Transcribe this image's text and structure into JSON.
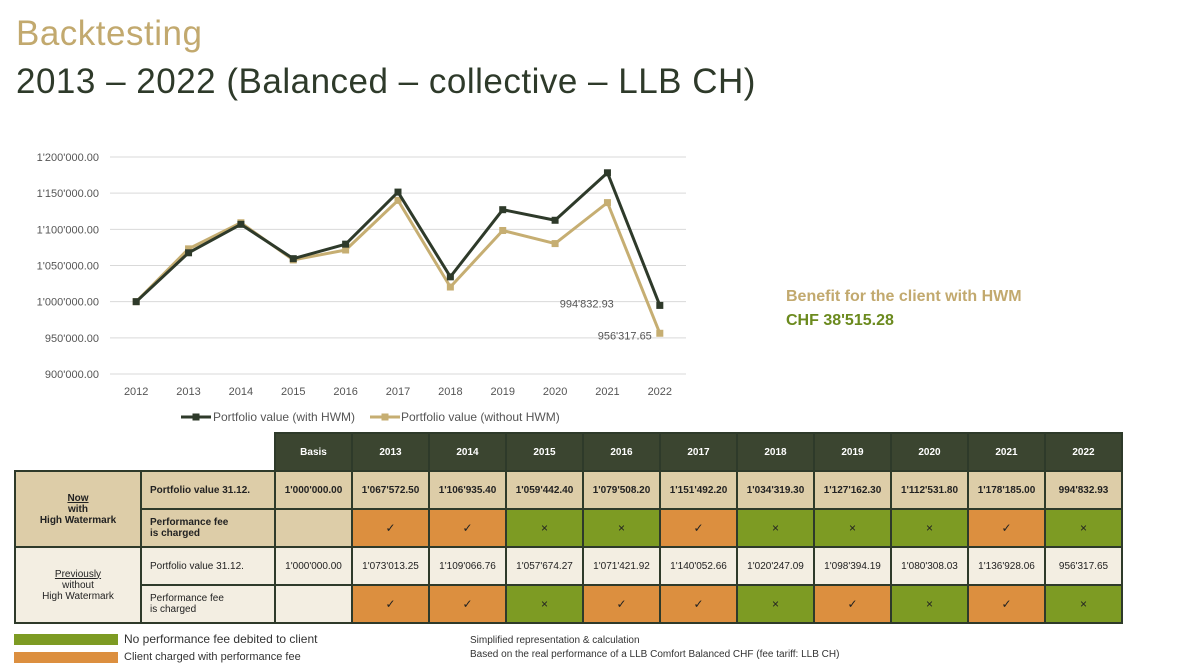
{
  "title": "Backtesting",
  "subtitle": "2013 – 2022 (Balanced – collective – LLB CH)",
  "chart_data": {
    "type": "line",
    "categories": [
      "2012",
      "2013",
      "2014",
      "2015",
      "2016",
      "2017",
      "2018",
      "2019",
      "2020",
      "2021",
      "2022"
    ],
    "ylim": [
      900000,
      1200000
    ],
    "y_ticks": [
      900000,
      950000,
      1000000,
      1050000,
      1100000,
      1150000,
      1200000
    ],
    "y_tick_labels": [
      "900'000.00",
      "950'000.00",
      "1'000'000.00",
      "1'050'000.00",
      "1'100'000.00",
      "1'150'000.00",
      "1'200'000.00"
    ],
    "series": [
      {
        "name": "Portfolio value (with HWM)",
        "color": "#2e3a2a",
        "values": [
          1000000,
          1067572.5,
          1106935.4,
          1059442.4,
          1079508.2,
          1151492.2,
          1034319.3,
          1127162.3,
          1112531.8,
          1178185.0,
          994832.93
        ]
      },
      {
        "name": "Portfolio value (without HWM)",
        "color": "#c6ae72",
        "values": [
          1000000,
          1073013.25,
          1109066.76,
          1057674.27,
          1071421.92,
          1140052.66,
          1020247.09,
          1098394.19,
          1080308.03,
          1136928.06,
          956317.65
        ]
      }
    ],
    "annotations": [
      "994'832.93",
      "956'317.65"
    ],
    "grid": true,
    "legend": "bottom"
  },
  "benefit": {
    "label": "Benefit for the client with HWM",
    "value": "CHF 38'515.28"
  },
  "table": {
    "headers": [
      "Basis",
      "2013",
      "2014",
      "2015",
      "2016",
      "2017",
      "2018",
      "2019",
      "2020",
      "2021",
      "2022"
    ],
    "group1": {
      "line1": "Now",
      "line2": "with",
      "line3": "High Watermark"
    },
    "group2": {
      "line1": "Previously",
      "line2": "without",
      "line3": "High Watermark"
    },
    "row_value_label": "Portfolio value 31.12.",
    "row_fee_label_1": "Performance fee",
    "row_fee_label_2": "is charged",
    "with_hwm_values": [
      "1'000'000.00",
      "1'067'572.50",
      "1'106'935.40",
      "1'059'442.40",
      "1'079'508.20",
      "1'151'492.20",
      "1'034'319.30",
      "1'127'162.30",
      "1'112'531.80",
      "1'178'185.00",
      "994'832.93"
    ],
    "without_hwm_values": [
      "1'000'000.00",
      "1'073'013.25",
      "1'109'066.76",
      "1'057'674.27",
      "1'071'421.92",
      "1'140'052.66",
      "1'020'247.09",
      "1'098'394.19",
      "1'080'308.03",
      "1'136'928.06",
      "956'317.65"
    ],
    "check_mark": "✓",
    "cross_mark": "×"
  },
  "legend": {
    "green": "No performance fee debited to client",
    "orange": "Client charged with performance fee"
  },
  "notes": {
    "line1": "Simplified  representation & calculation",
    "line2": "Based on the real performance of a LLB Comfort Balanced CHF (fee tariff: LLB CH)"
  },
  "colors": {
    "green": "#7d9b23",
    "orange": "#dc8f3f",
    "dark": "#2e3a2a",
    "gold": "#c6ae72"
  }
}
